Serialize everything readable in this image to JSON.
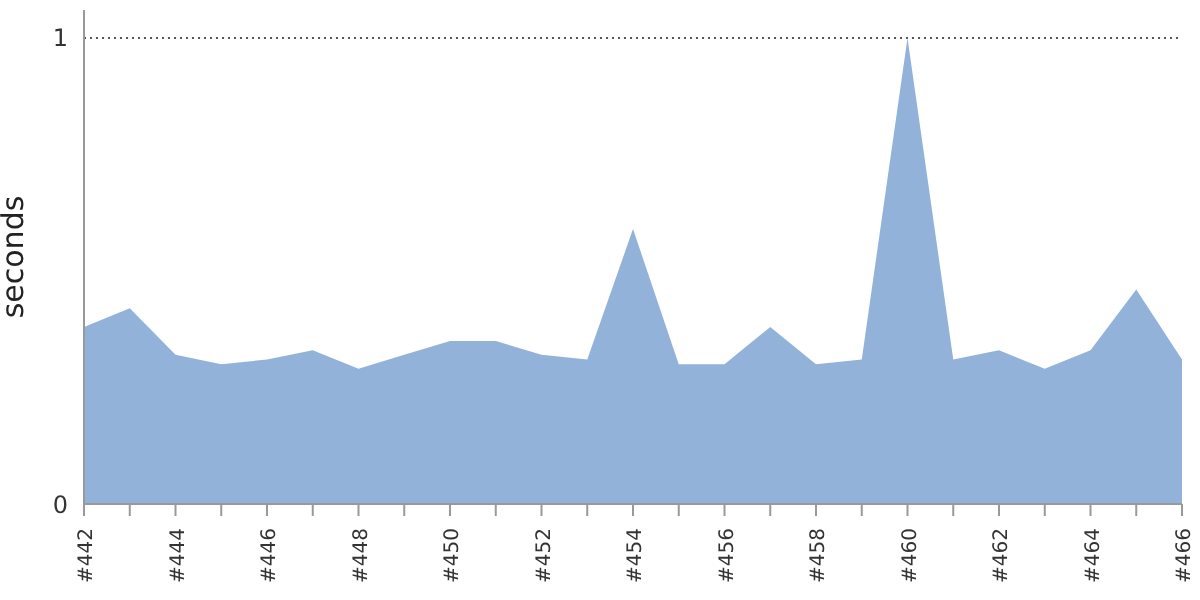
{
  "chart_data": {
    "type": "area",
    "ylabel": "seconds",
    "categories": [
      "#442",
      null,
      "#444",
      null,
      "#446",
      null,
      "#448",
      null,
      "#450",
      null,
      "#452",
      null,
      "#454",
      null,
      "#456",
      null,
      "#458",
      null,
      "#460",
      null,
      "#462",
      null,
      "#464",
      null,
      "#466"
    ],
    "series": [
      {
        "color": "#92b2da",
        "values": [
          0.38,
          0.42,
          0.32,
          0.3,
          0.31,
          0.33,
          0.29,
          0.32,
          0.35,
          0.35,
          0.32,
          0.31,
          0.59,
          0.3,
          0.3,
          0.38,
          0.3,
          0.31,
          1.0,
          0.31,
          0.33,
          0.29,
          0.33,
          0.46,
          0.31
        ]
      }
    ],
    "ylim": [
      0,
      1.06
    ],
    "yticks": [
      0,
      1
    ],
    "grid": "y"
  }
}
